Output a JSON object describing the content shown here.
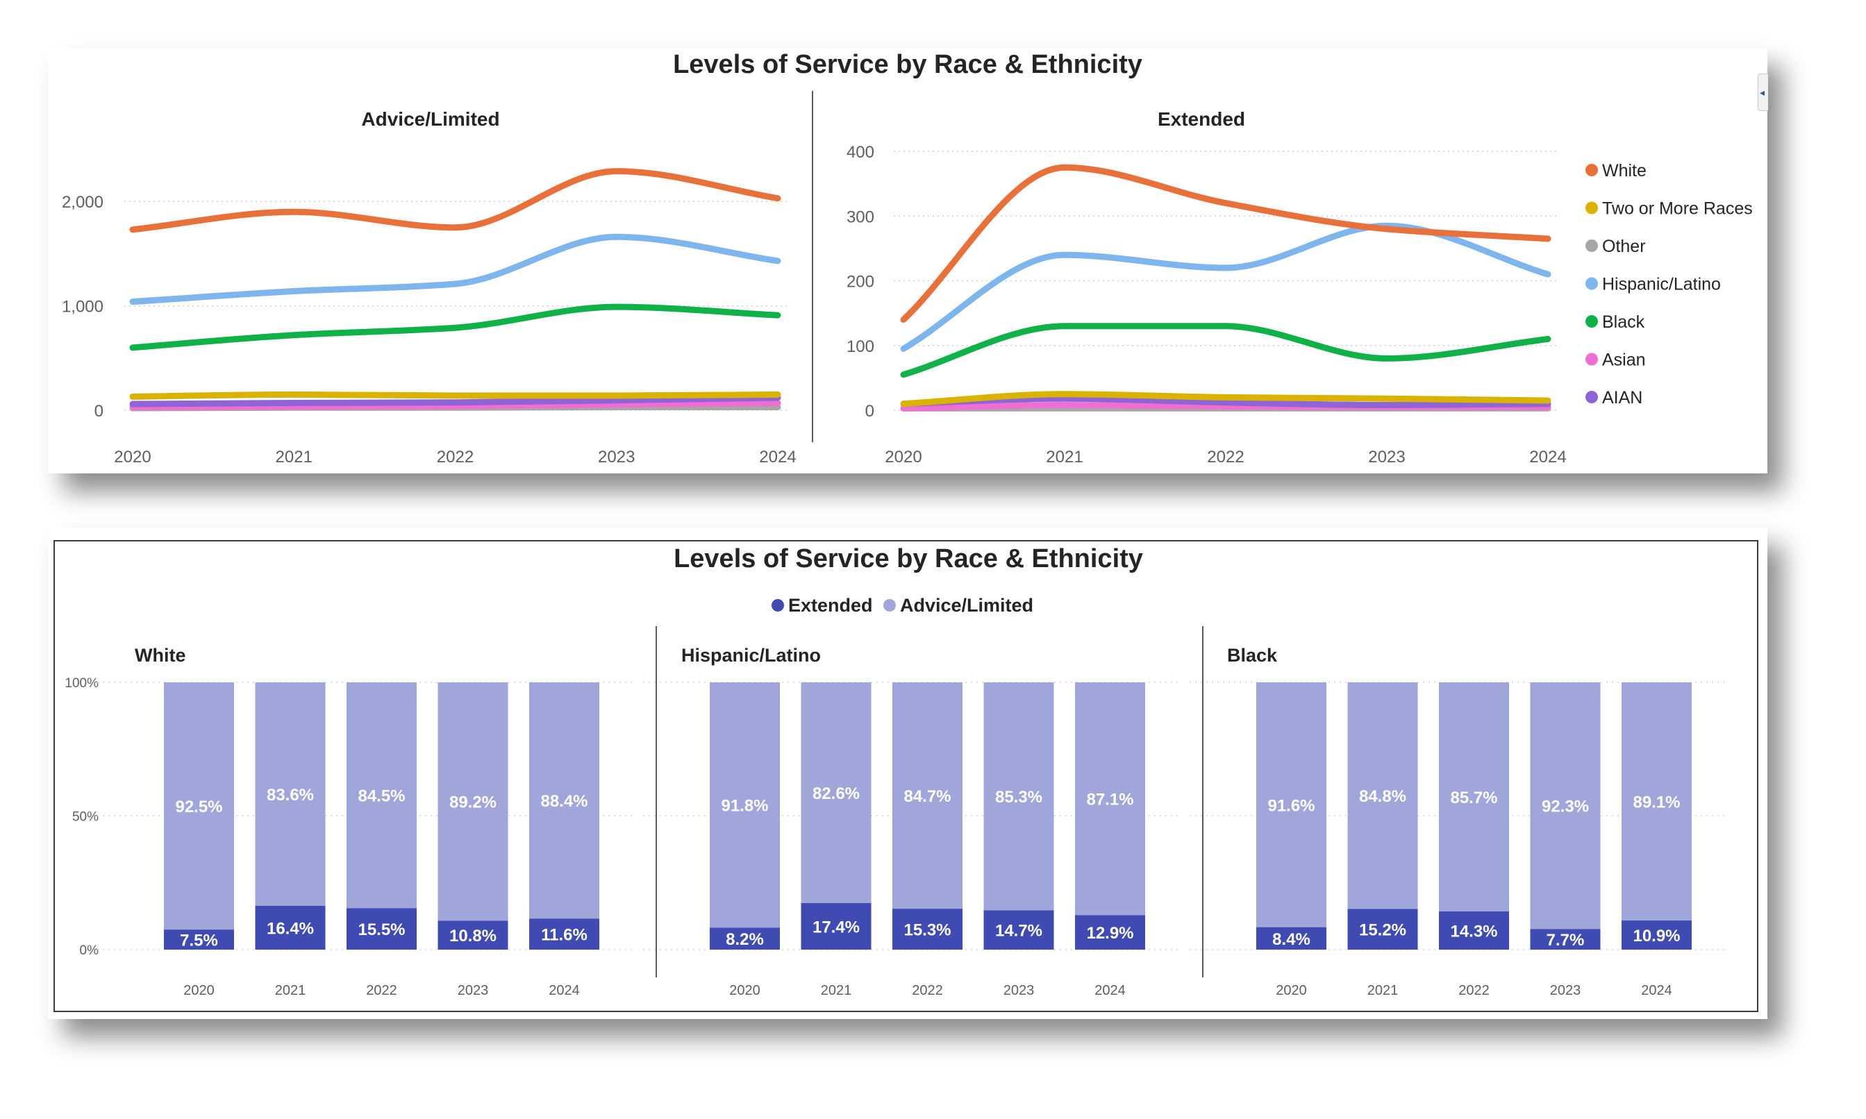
{
  "colors": {
    "White": "#E8703A",
    "Two or More Races": "#D9B300",
    "Other": "#A6A6A6",
    "Hispanic/Latino": "#7DB5EC",
    "Black": "#11B14A",
    "Asian": "#F06ED2",
    "AIAN": "#8F64D6",
    "extended": "#3F4AB2",
    "advice": "#A0A6D9"
  },
  "chart_data": [
    {
      "type": "line",
      "title": "Levels of Service by Race & Ethnicity",
      "subtitle": "Advice/Limited",
      "x": [
        2020,
        2021,
        2022,
        2023,
        2024
      ],
      "ylim": [
        0,
        2500
      ],
      "yticks": [
        0,
        1000,
        2000
      ],
      "ytick_labels": [
        "0",
        "1,000",
        "2,000"
      ],
      "series": [
        {
          "name": "White",
          "values": [
            1730,
            1900,
            1750,
            2290,
            2030
          ]
        },
        {
          "name": "Hispanic/Latino",
          "values": [
            1040,
            1140,
            1210,
            1660,
            1430
          ]
        },
        {
          "name": "Black",
          "values": [
            600,
            720,
            790,
            990,
            910
          ]
        },
        {
          "name": "Two or More Races",
          "values": [
            130,
            150,
            140,
            140,
            150
          ]
        },
        {
          "name": "AIAN",
          "values": [
            60,
            70,
            75,
            95,
            120
          ]
        },
        {
          "name": "Asian",
          "values": [
            30,
            35,
            40,
            55,
            70
          ]
        },
        {
          "name": "Other",
          "values": [
            20,
            25,
            25,
            30,
            30
          ]
        }
      ]
    },
    {
      "type": "line",
      "subtitle": "Extended",
      "x": [
        2020,
        2021,
        2022,
        2023,
        2024
      ],
      "ylim": [
        0,
        400
      ],
      "yticks": [
        0,
        100,
        200,
        300,
        400
      ],
      "ytick_labels": [
        "0",
        "100",
        "200",
        "300",
        "400"
      ],
      "legend_position": "right",
      "legend": [
        "White",
        "Two or More Races",
        "Other",
        "Hispanic/Latino",
        "Black",
        "Asian",
        "AIAN"
      ],
      "series": [
        {
          "name": "White",
          "values": [
            140,
            375,
            320,
            280,
            265
          ]
        },
        {
          "name": "Hispanic/Latino",
          "values": [
            95,
            240,
            220,
            285,
            210
          ]
        },
        {
          "name": "Black",
          "values": [
            55,
            130,
            130,
            80,
            110
          ]
        },
        {
          "name": "Two or More Races",
          "values": [
            10,
            25,
            20,
            18,
            15
          ]
        },
        {
          "name": "AIAN",
          "values": [
            10,
            18,
            12,
            8,
            10
          ]
        },
        {
          "name": "Asian",
          "values": [
            3,
            8,
            6,
            5,
            5
          ]
        },
        {
          "name": "Other",
          "values": [
            3,
            3,
            3,
            3,
            3
          ]
        }
      ]
    },
    {
      "type": "bar",
      "stacked": true,
      "title": "Levels of Service by Race & Ethnicity",
      "legend": [
        "Extended",
        "Advice/Limited"
      ],
      "ylim": [
        0,
        100
      ],
      "ytick_labels": [
        "100%",
        "50%",
        "0%"
      ],
      "groups": [
        {
          "name": "White",
          "categories": [
            "2020",
            "2021",
            "2022",
            "2023",
            "2024"
          ],
          "extended": [
            7.5,
            16.4,
            15.5,
            10.8,
            11.6
          ],
          "advice": [
            92.5,
            83.6,
            84.5,
            89.2,
            88.4
          ],
          "extended_labels": [
            "7.5%",
            "16.4%",
            "15.5%",
            "10.8%",
            "11.6%"
          ],
          "advice_labels": [
            "92.5%",
            "83.6%",
            "84.5%",
            "89.2%",
            "88.4%"
          ]
        },
        {
          "name": "Hispanic/Latino",
          "categories": [
            "2020",
            "2021",
            "2022",
            "2023",
            "2024"
          ],
          "extended": [
            8.2,
            17.4,
            15.3,
            14.7,
            12.9
          ],
          "advice": [
            91.8,
            82.6,
            84.7,
            85.3,
            87.1
          ],
          "extended_labels": [
            "8.2%",
            "17.4%",
            "15.3%",
            "14.7%",
            "12.9%"
          ],
          "advice_labels": [
            "91.8%",
            "82.6%",
            "84.7%",
            "85.3%",
            "87.1%"
          ]
        },
        {
          "name": "Black",
          "categories": [
            "2020",
            "2021",
            "2022",
            "2023",
            "2024"
          ],
          "extended": [
            8.4,
            15.2,
            14.3,
            7.7,
            10.9
          ],
          "advice": [
            91.6,
            84.8,
            85.7,
            92.3,
            89.1
          ],
          "extended_labels": [
            "8.4%",
            "15.2%",
            "14.3%",
            "7.7%",
            "10.9%"
          ],
          "advice_labels": [
            "91.6%",
            "84.8%",
            "85.7%",
            "92.3%",
            "89.1%"
          ]
        }
      ]
    }
  ]
}
